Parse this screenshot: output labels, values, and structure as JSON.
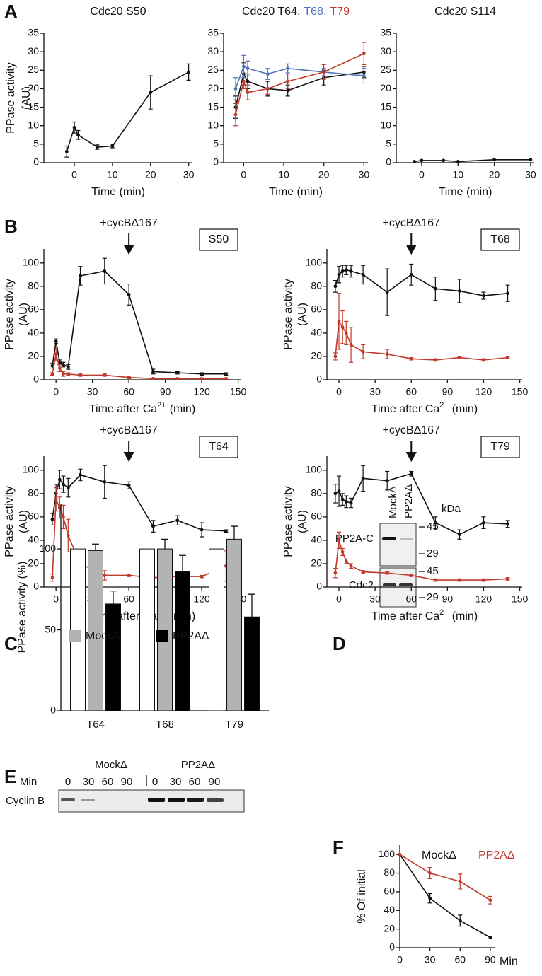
{
  "panels": [
    "A",
    "B",
    "C",
    "D",
    "E",
    "F"
  ],
  "chart_data": [
    {
      "type": "line",
      "title": "Cdc20 S50",
      "y_label": [
        "PPase activity",
        "(AU)"
      ],
      "x_label": "Time (min)",
      "x": [
        -2,
        0,
        1,
        6,
        10,
        20,
        30
      ],
      "xlim": [
        -8,
        31
      ],
      "xticks": [
        0,
        10,
        20,
        30
      ],
      "ylim": [
        0,
        35
      ],
      "yticks": [
        0,
        5,
        10,
        15,
        20,
        25,
        30,
        35
      ],
      "series": [
        {
          "color": "#111111",
          "values": [
            3,
            9.5,
            7.5,
            4.2,
            4.5,
            19,
            24.5
          ],
          "errors": [
            1.5,
            1.5,
            1.2,
            0.6,
            0.5,
            4.5,
            2.2
          ]
        }
      ]
    },
    {
      "type": "line",
      "title": [
        "Cdc20 T64,",
        "T68,",
        "T79"
      ],
      "x_label": "Time (min)",
      "x": [
        -2,
        0,
        1,
        6,
        11,
        20,
        30
      ],
      "xlim": [
        -5,
        31
      ],
      "xticks": [
        0,
        10,
        20,
        30
      ],
      "ylim": [
        0,
        35
      ],
      "yticks": [
        0,
        5,
        10,
        15,
        20,
        25,
        30,
        35
      ],
      "series": [
        {
          "color": "#111111",
          "values": [
            15,
            24,
            22,
            20,
            19.5,
            23,
            24.5
          ],
          "errors": [
            3,
            3,
            2,
            2,
            1.5,
            2,
            1.5
          ]
        },
        {
          "color": "#4f74b8",
          "values": [
            20,
            26,
            25.5,
            24,
            25.5,
            24.5,
            23.5
          ],
          "errors": [
            3,
            3,
            2,
            1.5,
            1.2,
            1,
            2
          ]
        },
        {
          "color": "#c0392b",
          "values": [
            13,
            22,
            19,
            20,
            22,
            24.5,
            29.5
          ],
          "errors": [
            3,
            2,
            2,
            1.5,
            2,
            2,
            3
          ]
        }
      ]
    },
    {
      "type": "line",
      "title": "Cdc20 S114",
      "x_label": "Time (min)",
      "x": [
        -2,
        0,
        6,
        10,
        20,
        30
      ],
      "xlim": [
        -7,
        31
      ],
      "xticks": [
        0,
        10,
        20,
        30
      ],
      "ylim": [
        0,
        35
      ],
      "yticks": [
        0,
        5,
        10,
        15,
        20,
        25,
        30,
        35
      ],
      "series": [
        {
          "color": "#111111",
          "values": [
            0.3,
            0.6,
            0.6,
            0.3,
            0.8,
            0.8
          ]
        }
      ]
    },
    {
      "type": "line",
      "label": "S50",
      "annotation": {
        "text": "+cycBΔ167",
        "x": 60
      },
      "y_label": [
        "PPase activity",
        "(AU)"
      ],
      "x_label": [
        "Time after Ca",
        "2+",
        "(min)"
      ],
      "x": [
        -3,
        0,
        3,
        6,
        10,
        20,
        40,
        60,
        80,
        100,
        120,
        140
      ],
      "xlim": [
        -10,
        152
      ],
      "xticks": [
        0,
        30,
        60,
        90,
        120,
        150
      ],
      "ylim": [
        0,
        112
      ],
      "yticks": [
        0,
        20,
        40,
        60,
        80,
        100
      ],
      "series": [
        {
          "color": "#111111",
          "values": [
            12,
            33,
            15,
            13,
            11,
            89,
            93,
            73,
            7,
            6,
            5,
            5
          ],
          "errors": [
            2,
            2,
            2,
            2,
            2,
            8,
            11,
            9,
            2,
            1,
            1,
            1
          ]
        },
        {
          "color": "#c0392b",
          "values": [
            5,
            22,
            10,
            5,
            5,
            4,
            4,
            2,
            1,
            1,
            1,
            1
          ],
          "errors": [
            1,
            6,
            3,
            2,
            1,
            1,
            1,
            1,
            0.5,
            0.5,
            0.5,
            0.5
          ]
        }
      ]
    },
    {
      "type": "line",
      "label": "T68",
      "annotation": {
        "text": "+cycBΔ167",
        "x": 60
      },
      "y_label": [
        "PPase activity",
        "(AU)"
      ],
      "x_label": [
        "Time after Ca",
        "2+",
        "(min)"
      ],
      "x": [
        -3,
        0,
        3,
        6,
        10,
        20,
        40,
        60,
        80,
        100,
        120,
        140
      ],
      "xlim": [
        -10,
        152
      ],
      "xticks": [
        0,
        30,
        60,
        90,
        120,
        150
      ],
      "ylim": [
        0,
        112
      ],
      "yticks": [
        0,
        20,
        40,
        60,
        80,
        100
      ],
      "series": [
        {
          "color": "#111111",
          "values": [
            80,
            90,
            93,
            94,
            93,
            90,
            75,
            90,
            78,
            76,
            72,
            74
          ],
          "errors": [
            5,
            7,
            5,
            4,
            5,
            8,
            20,
            9,
            10,
            10,
            3,
            7
          ]
        },
        {
          "color": "#c0392b",
          "values": [
            20,
            50,
            45,
            40,
            30,
            24,
            22,
            18,
            17,
            19,
            17,
            19
          ],
          "errors": [
            3,
            24,
            14,
            10,
            15,
            6,
            4,
            1,
            1,
            1,
            1,
            1
          ]
        }
      ]
    },
    {
      "type": "line",
      "label": "T64",
      "annotation": {
        "text": "+cycBΔ167",
        "x": 60
      },
      "y_label": [
        "PPase activity",
        "(AU)"
      ],
      "x_label": [
        "Time after Ca",
        "2+",
        "(min)"
      ],
      "x": [
        -3,
        0,
        3,
        6,
        10,
        20,
        40,
        60,
        80,
        100,
        120,
        140
      ],
      "xlim": [
        -10,
        152
      ],
      "xticks": [
        0,
        30,
        60,
        90,
        120,
        150
      ],
      "ylim": [
        0,
        112
      ],
      "yticks": [
        0,
        20,
        40,
        60,
        80,
        100
      ],
      "series": [
        {
          "color": "#111111",
          "values": [
            58,
            80,
            92,
            88,
            85,
            96,
            90,
            87,
            52,
            57,
            49,
            48
          ],
          "errors": [
            5,
            8,
            8,
            7,
            8,
            5,
            14,
            3,
            5,
            4,
            6,
            1
          ]
        },
        {
          "color": "#c0392b",
          "values": [
            8,
            75,
            68,
            60,
            44,
            20,
            10,
            10,
            8,
            9,
            9,
            18
          ],
          "errors": [
            3,
            10,
            9,
            10,
            14,
            5,
            4,
            1,
            1,
            1,
            1,
            13
          ]
        }
      ]
    },
    {
      "type": "line",
      "label": "T79",
      "annotation": {
        "text": "+cycBΔ167",
        "x": 60
      },
      "y_label": [
        "PPase activity",
        "(AU)"
      ],
      "x_label": [
        "Time after Ca",
        "2+",
        "(min)"
      ],
      "x": [
        -3,
        0,
        3,
        6,
        10,
        20,
        40,
        60,
        80,
        100,
        120,
        140
      ],
      "xlim": [
        -10,
        152
      ],
      "xticks": [
        0,
        30,
        60,
        90,
        120,
        150
      ],
      "ylim": [
        0,
        112
      ],
      "yticks": [
        0,
        20,
        40,
        60,
        80,
        100
      ],
      "series": [
        {
          "color": "#111111",
          "values": [
            80,
            82,
            75,
            73,
            72,
            93,
            91,
            97,
            55,
            45,
            55,
            54
          ],
          "errors": [
            8,
            13,
            5,
            5,
            4,
            11,
            8,
            2,
            5,
            4,
            5,
            3
          ]
        },
        {
          "color": "#c0392b",
          "values": [
            12,
            40,
            30,
            22,
            18,
            13,
            12,
            10,
            6,
            6,
            6,
            7
          ],
          "errors": [
            4,
            7,
            3,
            2,
            2,
            1,
            1,
            1,
            1,
            1,
            1,
            1
          ]
        }
      ]
    },
    {
      "type": "bar",
      "y_label": "PPase activity (%)",
      "categories": [
        "T64",
        "T68",
        "T79"
      ],
      "ylim": [
        0,
        128
      ],
      "yticks": [
        0,
        50,
        100
      ],
      "series": [
        {
          "color": "#ffffff",
          "values": [
            100,
            100,
            100
          ]
        },
        {
          "name": "MockΔ",
          "color": "#b3b3b3",
          "values": [
            99,
            100,
            106
          ],
          "errors": [
            4,
            6,
            8
          ]
        },
        {
          "name": "PP2AΔ",
          "color": "#000000",
          "values": [
            66,
            86,
            58
          ],
          "errors": [
            8,
            10,
            14
          ]
        }
      ]
    },
    {
      "type": "line",
      "y_label": "% Of initial",
      "x_label": "Min",
      "x": [
        0,
        30,
        60,
        90
      ],
      "xlim": [
        0,
        95
      ],
      "xticks": [
        0,
        30,
        60,
        90
      ],
      "ylim": [
        0,
        110
      ],
      "yticks": [
        0,
        20,
        40,
        60,
        80,
        100
      ],
      "series": [
        {
          "name": "MockΔ",
          "color": "#111111",
          "values": [
            100,
            53,
            29,
            11
          ],
          "errors": [
            null,
            5,
            6,
            null
          ]
        },
        {
          "name": "PP2AΔ",
          "color": "#c0392b",
          "values": [
            100,
            80,
            71,
            51
          ],
          "errors": [
            null,
            6,
            8,
            4
          ]
        }
      ]
    }
  ],
  "blot_d": {
    "lanes": [
      "MockΔ",
      "PP2AΔ"
    ],
    "unit": "kDa",
    "rows": [
      {
        "label": "PP2A-C",
        "markers": [
          45,
          29
        ]
      },
      {
        "label": "Cdc2",
        "markers": [
          45,
          29
        ]
      }
    ]
  },
  "blot_e": {
    "time_label": "Min",
    "row_label": "Cyclin B",
    "groups": [
      {
        "label": "MockΔ",
        "times": [
          0,
          30,
          60,
          90
        ]
      },
      {
        "label": "PP2AΔ",
        "times": [
          0,
          30,
          60,
          90
        ]
      }
    ]
  }
}
